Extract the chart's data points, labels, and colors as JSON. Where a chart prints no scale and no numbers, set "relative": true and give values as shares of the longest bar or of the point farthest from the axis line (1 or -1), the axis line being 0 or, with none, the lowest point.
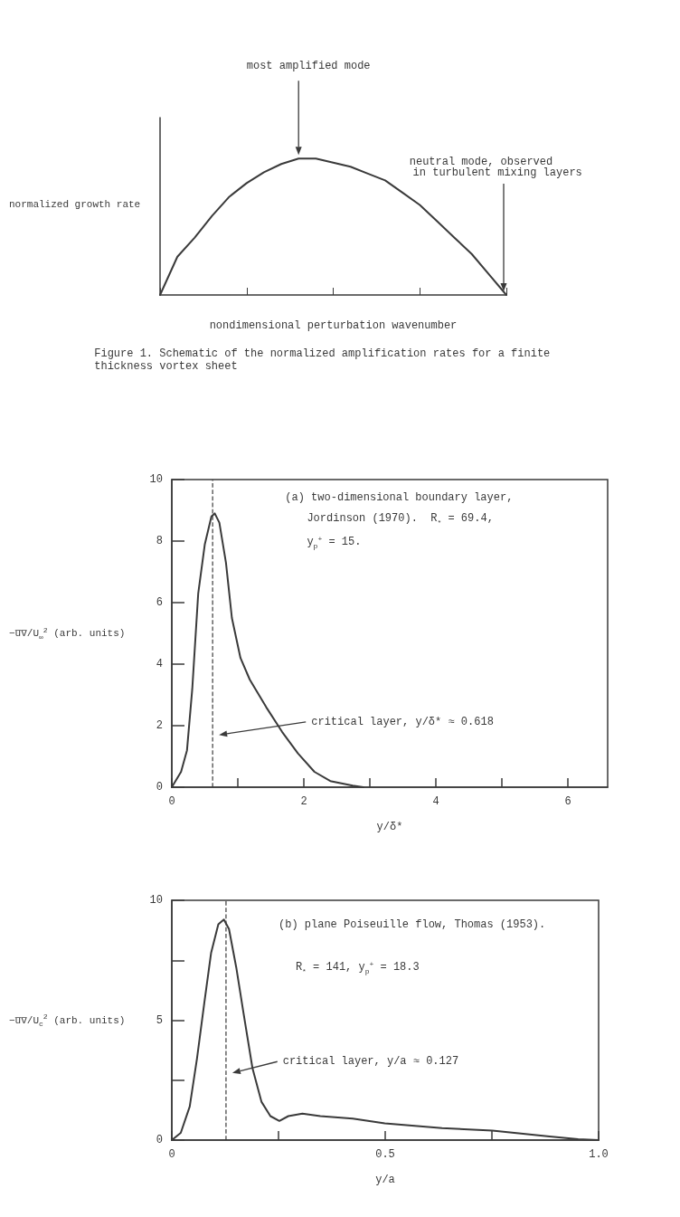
{
  "chart_data": [
    {
      "type": "line",
      "relative": true,
      "xlabel": "nondimensional perturbation wavenumber",
      "ylabel": "normalized growth rate",
      "categories": [
        null,
        null,
        null,
        null,
        null,
        null,
        null,
        null,
        null,
        null,
        null,
        null,
        null,
        null,
        null,
        null,
        null,
        null,
        null,
        null,
        null
      ],
      "series": [
        {
          "color": "#3a3a3a",
          "values": [
            0,
            0.28,
            0.42,
            0.58,
            0.72,
            0.82,
            0.9,
            0.96,
            1,
            1,
            0.97,
            0.94,
            0.89,
            0.84,
            0.75,
            0.66,
            0.54,
            0.42,
            0.3,
            0.15,
            0
          ]
        }
      ],
      "annotations": [
        "most amplified mode",
        "neutral mode, observed",
        "in turbulent mixing layers",
        "Figure 1. Schematic of the normalized amplification rates for a finite",
        "thickness vortex sheet"
      ],
      "grid": false,
      "marker": "none",
      "line_style": "solid"
    },
    {
      "type": "line",
      "xlabel": "y/δ*",
      "ylabel": "−u̅v̅/U$_{∞}$$^{2}$ (arb. units)",
      "xlim": [
        0,
        6.6
      ],
      "xticks": [
        0,
        {
          "value": 1,
          "label": null
        },
        2,
        {
          "value": 3,
          "label": null
        },
        4,
        {
          "value": 5,
          "label": null
        },
        6
      ],
      "ylim": [
        0,
        10
      ],
      "yticks": [
        0,
        2,
        4,
        6,
        8,
        10
      ],
      "series": [
        {
          "color": "#3a3a3a",
          "x": [
            0,
            0.14,
            0.23,
            0.31,
            0.4,
            0.5,
            0.6,
            0.65,
            0.72,
            0.82,
            0.91,
            1.04,
            1.18,
            1.43,
            1.67,
            1.91,
            2.16,
            2.4,
            2.74,
            2.9
          ],
          "values": [
            0,
            0.5,
            1.2,
            3.2,
            6.3,
            7.9,
            8.8,
            8.9,
            8.6,
            7.3,
            5.5,
            4.2,
            3.5,
            2.6,
            1.8,
            1.1,
            0.5,
            0.2,
            0.05,
            0
          ]
        }
      ],
      "ref_lines": [
        {
          "axis": "x",
          "value": 0.618,
          "line_style": "dashed",
          "color": "#3a3a3a"
        }
      ],
      "annotations": [
        "(a) two-dimensional boundary layer,",
        "Jordinson (1970).  R$_{*}$ = 69.4,",
        "y$_{p}$$^{+}$ = 15.",
        "critical layer, y/δ* ≈ 0.618"
      ],
      "grid": false,
      "marker": "none",
      "line_style": "solid"
    },
    {
      "type": "line",
      "xlabel": "y/a",
      "ylabel": "−u̅v̅/U$_{c}$$^{2}$ (arb. units)",
      "xlim": [
        0,
        1.0
      ],
      "xticks": [
        0,
        {
          "value": 0.25,
          "label": null
        },
        0.5,
        {
          "value": 0.75,
          "label": null
        },
        {
          "value": 1.0,
          "label": "1.0"
        }
      ],
      "ylim": [
        0,
        10
      ],
      "yticks": [
        0,
        {
          "value": 2.5,
          "label": null
        },
        5,
        {
          "value": 7.5,
          "label": null
        },
        10
      ],
      "series": [
        {
          "color": "#3a3a3a",
          "x": [
            0,
            0.021,
            0.042,
            0.059,
            0.076,
            0.092,
            0.109,
            0.122,
            0.134,
            0.151,
            0.168,
            0.189,
            0.21,
            0.231,
            0.252,
            0.273,
            0.306,
            0.348,
            0.424,
            0.499,
            0.633,
            0.751,
            0.885,
            0.952,
            1.0
          ],
          "values": [
            0,
            0.3,
            1.4,
            3.4,
            5.7,
            7.8,
            9.0,
            9.2,
            8.8,
            7.2,
            5.3,
            3.0,
            1.6,
            1.0,
            0.8,
            1.0,
            1.1,
            1.0,
            0.9,
            0.7,
            0.5,
            0.4,
            0.15,
            0.04,
            0
          ]
        }
      ],
      "ref_lines": [
        {
          "axis": "x",
          "value": 0.127,
          "line_style": "dashed",
          "color": "#3a3a3a"
        }
      ],
      "annotations": [
        "(b) plane Poiseuille flow, Thomas (1953).",
        "R$_{*}$ = 141, y$_{p}$$^{+}$ = 18.3",
        "critical layer, y/a ≈ 0.127"
      ],
      "grid": false,
      "marker": "none",
      "line_style": "solid"
    }
  ]
}
